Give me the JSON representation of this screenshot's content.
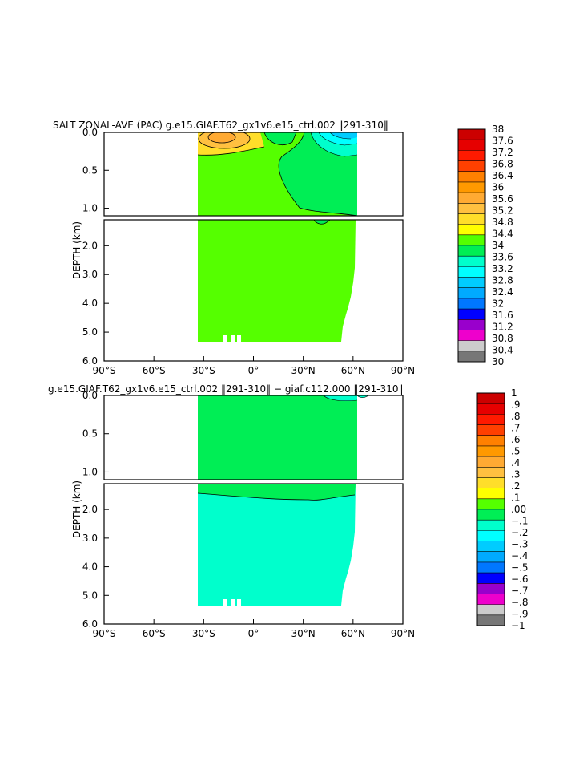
{
  "chart_data": [
    {
      "type": "heatmap",
      "title": "SALT ZONAL-AVE (PAC) g.e15.GIAF.T62_gx1v6.e15_ctrl.002 ‖291-310‖",
      "ylabel": "DEPTH (km)",
      "xlabel": "",
      "x_ticks": [
        "90°S",
        "60°S",
        "30°S",
        "0°",
        "30°N",
        "60°N",
        "90°N"
      ],
      "x_values": [
        -90,
        -60,
        -30,
        0,
        30,
        60,
        90
      ],
      "xlim": [
        -90,
        90
      ],
      "upper_panel": {
        "ylim": [
          0,
          1.1
        ],
        "ticks": [
          "0.0",
          "0.5",
          "1.0"
        ],
        "tick_values": [
          0,
          0.5,
          1.0
        ]
      },
      "lower_panel": {
        "ylim": [
          1.1,
          6.0
        ],
        "ticks": [
          "2.0",
          "3.0",
          "4.0",
          "5.0",
          "6.0"
        ],
        "tick_values": [
          2,
          3,
          4,
          5,
          6
        ]
      },
      "data_extent": {
        "lat_min": -33,
        "lat_max": 63,
        "max_depth_km": 5.4
      },
      "background_value": 34.4,
      "colorbar": {
        "levels": [
          "38",
          "37.6",
          "37.2",
          "36.8",
          "36.4",
          "36",
          "35.6",
          "35.2",
          "34.8",
          "34.4",
          "34",
          "33.6",
          "33.2",
          "32.8",
          "32.4",
          "32",
          "31.6",
          "31.2",
          "30.8",
          "30.4",
          "30"
        ],
        "colors": [
          "#cc0000",
          "#e60000",
          "#ff1a00",
          "#ff4000",
          "#ff8000",
          "#ff9900",
          "#ffaa33",
          "#ffc040",
          "#ffde2a",
          "#ffff00",
          "#55ff00",
          "#00ee55",
          "#00ffcc",
          "#00ffff",
          "#00ccff",
          "#00aaff",
          "#0077ff",
          "#0000ff",
          "#9900cc",
          "#ee00cc",
          "#cccccc",
          "#777777"
        ]
      }
    },
    {
      "type": "heatmap",
      "title": "g.e15.GIAF.T62_gx1v6.e15_ctrl.002 ‖291-310‖ − giaf.c112.000 ‖291-310‖",
      "ylabel": "DEPTH (km)",
      "xlabel": "",
      "x_ticks": [
        "90°S",
        "60°S",
        "30°S",
        "0°",
        "30°N",
        "60°N",
        "90°N"
      ],
      "x_values": [
        -90,
        -60,
        -30,
        0,
        30,
        60,
        90
      ],
      "xlim": [
        -90,
        90
      ],
      "upper_panel": {
        "ylim": [
          0,
          1.1
        ],
        "ticks": [
          "0.0",
          "0.5",
          "1.0"
        ],
        "tick_values": [
          0,
          0.5,
          1.0
        ]
      },
      "lower_panel": {
        "ylim": [
          1.1,
          6.0
        ],
        "ticks": [
          "2.0",
          "3.0",
          "4.0",
          "5.0",
          "6.0"
        ],
        "tick_values": [
          2,
          3,
          4,
          5,
          6
        ]
      },
      "data_extent": {
        "lat_min": -33,
        "lat_max": 63,
        "max_depth_km": 5.4
      },
      "boundary_depth_km": 1.6,
      "value_above": 0.05,
      "value_below": -0.05,
      "colorbar": {
        "levels": [
          "1",
          ".9",
          ".8",
          ".7",
          ".6",
          ".5",
          ".4",
          ".3",
          ".2",
          ".1",
          ".00",
          "−.1",
          "−.2",
          "−.3",
          "−.4",
          "−.5",
          "−.6",
          "−.7",
          "−.8",
          "−.9",
          "−1"
        ],
        "colors": [
          "#cc0000",
          "#e60000",
          "#ff1a00",
          "#ff4000",
          "#ff8000",
          "#ff9900",
          "#ffaa33",
          "#ffc040",
          "#ffde2a",
          "#ffff00",
          "#55ff00",
          "#00ee55",
          "#00ffcc",
          "#00ffff",
          "#00ccff",
          "#00aaff",
          "#0077ff",
          "#0000ff",
          "#9900cc",
          "#ee00cc",
          "#cccccc",
          "#777777"
        ]
      }
    }
  ]
}
